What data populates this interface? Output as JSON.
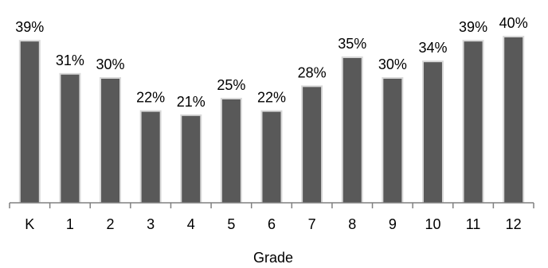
{
  "chart_data": {
    "type": "bar",
    "categories": [
      "K",
      "1",
      "2",
      "3",
      "4",
      "5",
      "6",
      "7",
      "8",
      "9",
      "10",
      "11",
      "12"
    ],
    "values": [
      39,
      31,
      30,
      22,
      21,
      25,
      22,
      28,
      35,
      30,
      34,
      39,
      40
    ],
    "data_labels": [
      "39%",
      "31%",
      "30%",
      "22%",
      "21%",
      "25%",
      "22%",
      "28%",
      "35%",
      "30%",
      "34%",
      "39%",
      "40%"
    ],
    "title": "",
    "xlabel": "Grade",
    "ylabel": "",
    "ylim": [
      0,
      40
    ],
    "grid": false,
    "legend": "none",
    "colors": {
      "bar": "#595959",
      "bar_edge": "#d9d9d9",
      "axis": "#808080"
    }
  }
}
